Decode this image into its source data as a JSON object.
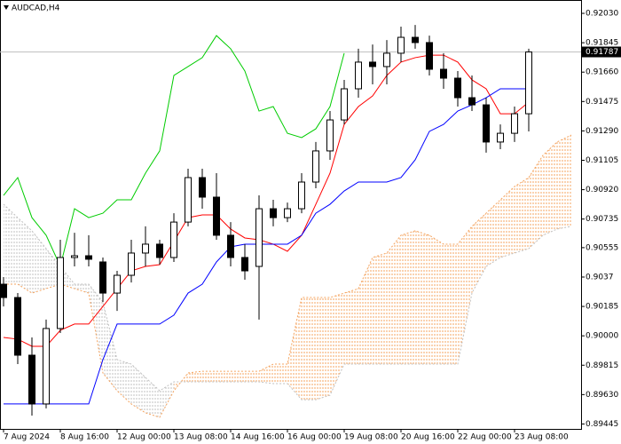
{
  "chart_data": {
    "type": "candlestick",
    "title": "AUDCAD,H4",
    "categories": [
      "7 Aug 2024",
      null,
      null,
      null,
      "8 Aug 16:00",
      null,
      null,
      null,
      "12 Aug 00:00",
      null,
      null,
      null,
      "13 Aug 08:00",
      null,
      null,
      null,
      "14 Aug 16:00",
      null,
      null,
      null,
      "16 Aug 00:00",
      null,
      null,
      null,
      "19 Aug 08:00",
      null,
      null,
      null,
      "20 Aug 16:00",
      null,
      null,
      null,
      "22 Aug 00:00",
      null,
      null,
      null,
      "23 Aug 08:00",
      null,
      null,
      null,
      null
    ],
    "open": [
      0.90325,
      0.90241,
      0.89878,
      0.89571,
      0.90046,
      0.90493,
      0.90504,
      0.90465,
      0.90269,
      0.90381,
      0.90521,
      0.90577,
      0.90493,
      0.90716,
      0.90996,
      0.90873,
      0.90633,
      0.90493,
      0.90437,
      0.908,
      0.90744,
      0.908,
      0.90968,
      0.91164,
      0.91359,
      0.91555,
      0.91723,
      0.91695,
      0.91779,
      0.91879,
      0.91846,
      0.91678,
      0.91622,
      0.91499,
      0.91454,
      0.9122,
      0.91275,
      0.91398,
      null,
      null,
      null
    ],
    "high": [
      0.9037,
      0.90269,
      0.8999,
      0.90102,
      0.90605,
      0.90649,
      0.90633,
      0.90493,
      0.90409,
      0.90605,
      0.90689,
      0.90605,
      0.90772,
      0.91052,
      0.91052,
      0.91024,
      0.90716,
      0.90577,
      0.90884,
      0.90856,
      0.90839,
      0.91024,
      0.9122,
      0.91415,
      0.91611,
      0.91807,
      0.91834,
      0.91862,
      0.91946,
      0.91957,
      0.9189,
      0.91779,
      0.91667,
      0.91639,
      0.91499,
      0.91331,
      0.91443,
      0.91807,
      null,
      null,
      null
    ],
    "low": [
      0.90185,
      0.89822,
      0.89498,
      0.89543,
      0.90018,
      0.90437,
      0.90437,
      0.90213,
      0.90157,
      0.90336,
      0.90437,
      0.90448,
      0.90465,
      0.90689,
      0.908,
      0.90605,
      0.90437,
      0.90353,
      0.90102,
      0.90689,
      0.90716,
      0.90772,
      0.90929,
      0.91108,
      0.91331,
      0.91499,
      0.91583,
      0.91583,
      0.91723,
      0.91807,
      0.91639,
      0.91555,
      0.91443,
      0.91415,
      0.91153,
      0.91175,
      0.9122,
      0.91287,
      null,
      null,
      null
    ],
    "close": [
      0.90241,
      0.89878,
      0.89571,
      0.90046,
      0.90493,
      0.90504,
      0.90482,
      0.90269,
      0.90381,
      0.90521,
      0.90577,
      0.90493,
      0.90716,
      0.90996,
      0.90873,
      0.90633,
      0.90493,
      0.90409,
      0.908,
      0.90744,
      0.908,
      0.90968,
      0.91164,
      0.91359,
      0.91555,
      0.91723,
      0.91695,
      0.91779,
      0.91879,
      0.91846,
      0.91678,
      0.91622,
      0.91499,
      0.91454,
      0.9122,
      0.91275,
      0.91398,
      0.91787,
      null,
      null,
      null
    ],
    "up_color": "#ffffff",
    "down_color": "#000000",
    "series": [
      {
        "color": "#ff0000",
        "values": [
          0.8999,
          0.89979,
          0.89934,
          0.89934,
          0.90035,
          0.90074,
          0.90074,
          0.90185,
          0.90297,
          0.90409,
          0.90437,
          0.90448,
          0.90594,
          0.90744,
          0.90761,
          0.90761,
          0.90672,
          0.90616,
          0.90605,
          0.90577,
          0.90532,
          0.90633,
          0.90828,
          0.91024,
          0.91331,
          0.91443,
          0.9151,
          0.91639,
          0.91723,
          0.91751,
          0.91767,
          0.91767,
          0.91723,
          0.91611,
          0.91555,
          0.91398,
          0.91398,
          0.91471,
          null,
          null,
          null
        ]
      },
      {
        "color": "#0000ff",
        "values": [
          0.89571,
          0.89571,
          0.89571,
          0.89571,
          0.89571,
          0.89571,
          0.89571,
          0.8985,
          0.90074,
          0.90074,
          0.90074,
          0.90074,
          0.9013,
          0.90269,
          0.90325,
          0.90465,
          0.9056,
          0.90577,
          0.90577,
          0.90577,
          0.90577,
          0.90633,
          0.90772,
          0.90828,
          0.90912,
          0.90968,
          0.90968,
          0.90968,
          0.90996,
          0.91108,
          0.91287,
          0.91331,
          0.91415,
          0.91454,
          0.91499,
          0.91555,
          0.91555,
          0.91555,
          null,
          null,
          null
        ]
      },
      {
        "color": "#00cc00",
        "values": [
          0.90884,
          0.90996,
          0.90744,
          0.90633,
          0.90437,
          0.908,
          0.90744,
          0.90772,
          0.90856,
          0.90856,
          0.91024,
          0.91164,
          0.91639,
          0.91695,
          0.91751,
          0.9189,
          0.91807,
          0.91667,
          0.91415,
          0.91443,
          0.91275,
          0.91248,
          0.91303,
          0.91443,
          0.91779,
          null,
          null,
          null,
          null,
          null,
          null,
          null,
          null,
          null,
          null,
          null,
          null,
          null,
          null,
          null,
          null
        ]
      }
    ],
    "cloud": {
      "up_color": "#f4a460",
      "down_color": "#c0c0c0",
      "span_a": [
        0.90325,
        0.90325,
        0.90269,
        0.90297,
        0.90325,
        0.90297,
        0.90269,
        0.89766,
        0.89654,
        0.89571,
        0.89515,
        0.89487,
        0.89654,
        0.89766,
        0.89777,
        0.89777,
        0.89777,
        0.89777,
        0.89777,
        0.89822,
        0.89822,
        0.90241,
        0.90241,
        0.90241,
        0.90269,
        0.90297,
        0.90493,
        0.90521,
        0.90633,
        0.90661,
        0.90633,
        0.90577,
        0.90577,
        0.90689,
        0.90772,
        0.90856,
        0.9094,
        0.90996,
        0.91136,
        0.9122,
        0.91264
      ],
      "span_b": [
        0.90828,
        0.90744,
        0.90661,
        0.90549,
        0.90437,
        0.90325,
        0.90325,
        0.90213,
        0.8985,
        0.89822,
        0.89738,
        0.89654,
        0.8971,
        0.8971,
        0.8971,
        0.8971,
        0.8971,
        0.8971,
        0.8971,
        0.89699,
        0.89699,
        0.89598,
        0.89598,
        0.89626,
        0.89822,
        0.89822,
        0.89822,
        0.89822,
        0.89822,
        0.89822,
        0.89822,
        0.89822,
        0.89822,
        0.90269,
        0.90437,
        0.90493,
        0.90521,
        0.90549,
        0.90633,
        0.90672,
        0.90689
      ]
    },
    "last_price": {
      "value": 0.91787,
      "label": "0.91787"
    },
    "ylim": [
      0.89414,
      0.92114
    ],
    "yticks": [
      {
        "value": 0.9203,
        "label": "0.92030"
      },
      {
        "value": 0.91845,
        "label": "0.91845"
      },
      {
        "value": 0.9166,
        "label": "0.91660"
      },
      {
        "value": 0.91475,
        "label": "0.91475"
      },
      {
        "value": 0.9129,
        "label": "0.91290"
      },
      {
        "value": 0.91105,
        "label": "0.91105"
      },
      {
        "value": 0.9092,
        "label": "0.90920"
      },
      {
        "value": 0.90735,
        "label": "0.90735"
      },
      {
        "value": 0.90555,
        "label": "0.90555"
      },
      0.9037,
      0.90185,
      {
        "value": 0.9,
        "label": "0.90000"
      },
      0.89815,
      {
        "value": 0.8963,
        "label": "0.89630"
      },
      0.89445
    ]
  }
}
